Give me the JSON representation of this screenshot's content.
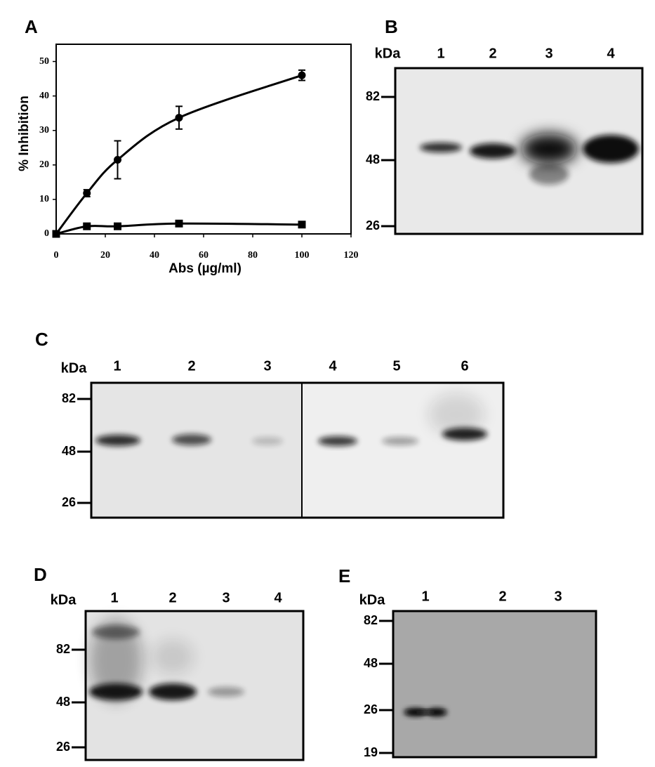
{
  "chart_data": {
    "type": "line",
    "panel": "A",
    "ylabel": "% Inhibition",
    "xlabel": "Abs (µg/ml)",
    "x": [
      0,
      12.5,
      25,
      50,
      100
    ],
    "series": [
      {
        "marker": "circle",
        "color": "#000000",
        "values": [
          0,
          11.8,
          21.5,
          33.7,
          46
        ],
        "errors": [
          0,
          1,
          5.5,
          3.3,
          1.5
        ]
      },
      {
        "marker": "square",
        "color": "#000000",
        "values": [
          0,
          2.2,
          2.2,
          3,
          2.7
        ]
      }
    ],
    "xlim": [
      0,
      120
    ],
    "ylim": [
      0,
      55
    ],
    "xticks": [
      0,
      20,
      40,
      60,
      80,
      100,
      120
    ],
    "yticks": [
      0,
      10,
      20,
      30,
      40,
      50
    ]
  },
  "blots": [
    {
      "panel": "B",
      "unit": "kDa",
      "lanes": [
        "1",
        "2",
        "3",
        "4"
      ],
      "markers": [
        "82",
        "48",
        "26"
      ]
    },
    {
      "panel": "C",
      "unit": "kDa",
      "lanes": [
        "1",
        "2",
        "3",
        "4",
        "5",
        "6"
      ],
      "markers": [
        "82",
        "48",
        "26"
      ]
    },
    {
      "panel": "D",
      "unit": "kDa",
      "lanes": [
        "1",
        "2",
        "3",
        "4"
      ],
      "markers": [
        "82",
        "48",
        "26"
      ]
    },
    {
      "panel": "E",
      "unit": "kDa",
      "lanes": [
        "1",
        "2",
        "3"
      ],
      "markers": [
        "82",
        "48",
        "26",
        "19"
      ]
    }
  ]
}
